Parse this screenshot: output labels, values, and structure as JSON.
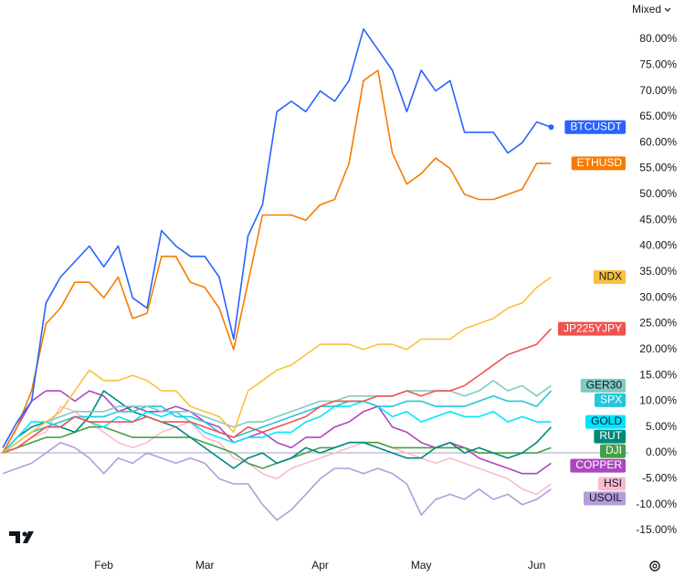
{
  "chart_data": {
    "type": "line",
    "scale_button": "Mixed",
    "categories": [
      null,
      null,
      null,
      null,
      null,
      null,
      null,
      "Feb",
      null,
      null,
      null,
      null,
      null,
      null,
      "Mar",
      null,
      null,
      null,
      null,
      null,
      null,
      null,
      "Apr",
      null,
      null,
      null,
      null,
      null,
      null,
      "May",
      null,
      null,
      null,
      null,
      null,
      null,
      null,
      "Jun",
      null
    ],
    "ylim": [
      -18,
      86
    ],
    "yticks": [
      {
        "value": -15,
        "label": "-15.00%"
      },
      {
        "value": -10,
        "label": "-10.00%"
      },
      {
        "value": -5,
        "label": "-5.00%"
      },
      {
        "value": 0,
        "label": "0.00%"
      },
      {
        "value": 5,
        "label": "5.00%"
      },
      {
        "value": 10,
        "label": "10.00%"
      },
      {
        "value": 15,
        "label": "15.00%"
      },
      {
        "value": 20,
        "label": "20.00%"
      },
      {
        "value": 25,
        "label": "25.00%"
      },
      {
        "value": 30,
        "label": "30.00%"
      },
      {
        "value": 35,
        "label": "35.00%"
      },
      {
        "value": 40,
        "label": "40.00%"
      },
      {
        "value": 45,
        "label": "45.00%"
      },
      {
        "value": 50,
        "label": "50.00%"
      },
      {
        "value": 55,
        "label": "55.00%"
      },
      {
        "value": 60,
        "label": "60.00%"
      },
      {
        "value": 65,
        "label": "65.00%"
      },
      {
        "value": 70,
        "label": "70.00%"
      },
      {
        "value": 75,
        "label": "75.00%"
      },
      {
        "value": 80,
        "label": "80.00%"
      }
    ],
    "grid": false,
    "series": [
      {
        "name": "BTCUSDT",
        "color": "#2962ff",
        "values": [
          1,
          6,
          10,
          29,
          34,
          37,
          40,
          36,
          40,
          30,
          28,
          43,
          40,
          38,
          38,
          34,
          22,
          42,
          48,
          66,
          68,
          66,
          70,
          68,
          72,
          82,
          78,
          74,
          66,
          74,
          70,
          72,
          62,
          62,
          62,
          58,
          60,
          64,
          63
        ]
      },
      {
        "name": "ETHUSD",
        "color": "#f57c00",
        "values": [
          0,
          5,
          12,
          25,
          28,
          33,
          33,
          30,
          34,
          26,
          27,
          38,
          38,
          33,
          32,
          28,
          20,
          33,
          46,
          46,
          46,
          45,
          48,
          49,
          56,
          72,
          74,
          58,
          52,
          54,
          57,
          55,
          50,
          49,
          49,
          50,
          51,
          56,
          56
        ]
      },
      {
        "name": "NDX",
        "color": "#f9c23c",
        "values": [
          0,
          2,
          4,
          6,
          8,
          12,
          16,
          14,
          14,
          15,
          14,
          12,
          12,
          9,
          8,
          7,
          4,
          12,
          14,
          16,
          17,
          19,
          21,
          21,
          21,
          20,
          21,
          21,
          20,
          22,
          22,
          22,
          24,
          25,
          26,
          28,
          29,
          32,
          34
        ]
      },
      {
        "name": "JP225YJPY",
        "color": "#ef5350",
        "values": [
          0,
          1,
          3,
          5,
          5,
          7,
          6,
          6,
          6,
          6,
          7,
          6,
          6,
          6,
          5,
          4,
          3,
          5,
          4,
          5,
          6,
          7,
          9,
          10,
          10,
          10,
          11,
          11,
          12,
          11,
          12,
          12,
          13,
          15,
          17,
          19,
          20,
          21,
          24
        ]
      },
      {
        "name": "GER30",
        "color": "#80cbc4",
        "values": [
          0,
          2,
          4,
          6,
          7,
          8,
          8,
          8,
          9,
          9,
          9,
          8,
          8,
          8,
          7,
          6,
          5,
          6,
          6,
          7,
          8,
          9,
          10,
          10,
          11,
          11,
          11,
          11,
          12,
          12,
          12,
          12,
          11,
          12,
          14,
          12,
          13,
          11,
          13
        ]
      },
      {
        "name": "SPX",
        "color": "#26c6da",
        "values": [
          0,
          2,
          4,
          5,
          6,
          7,
          7,
          7,
          8,
          8,
          9,
          9,
          7,
          7,
          6,
          4,
          3,
          4,
          5,
          6,
          7,
          8,
          9,
          9,
          10,
          10,
          9,
          9,
          10,
          10,
          9,
          9,
          9,
          10,
          11,
          10,
          10,
          9,
          12
        ]
      },
      {
        "name": "GOLD",
        "color": "#00e5ff",
        "values": [
          0,
          3,
          6,
          6,
          5,
          7,
          6,
          5,
          7,
          6,
          8,
          7,
          8,
          6,
          4,
          3,
          2,
          3,
          3,
          4,
          4,
          6,
          7,
          9,
          9,
          10,
          9,
          7,
          8,
          6,
          7,
          8,
          7,
          7,
          8,
          6,
          7,
          6,
          6
        ]
      },
      {
        "name": "RUT",
        "color": "#00897b",
        "values": [
          0,
          3,
          5,
          6,
          5,
          4,
          7,
          12,
          10,
          8,
          7,
          6,
          5,
          3,
          1,
          -1,
          -3,
          -1,
          0,
          -2,
          -1,
          1,
          0,
          1,
          2,
          2,
          1,
          0,
          -1,
          -1,
          1,
          2,
          0,
          1,
          0,
          -1,
          0,
          2,
          5
        ]
      },
      {
        "name": "DJI",
        "color": "#43a047",
        "values": [
          0,
          1,
          2,
          3,
          3,
          4,
          5,
          5,
          4,
          3,
          3,
          3,
          3,
          3,
          2,
          1,
          0,
          -2,
          -3,
          -2,
          -1,
          0,
          1,
          1,
          2,
          2,
          2,
          1,
          1,
          1,
          1,
          1,
          1,
          0,
          0,
          0,
          0,
          0,
          1
        ]
      },
      {
        "name": "COPPER",
        "color": "#ab47bc",
        "values": [
          0,
          5,
          10,
          12,
          12,
          10,
          12,
          11,
          8,
          9,
          8,
          8,
          9,
          8,
          6,
          5,
          2,
          3,
          4,
          2,
          1,
          3,
          3,
          5,
          6,
          8,
          9,
          5,
          4,
          2,
          1,
          2,
          1,
          -1,
          -2,
          -3,
          -4,
          -4,
          -2
        ]
      },
      {
        "name": "HSI",
        "color": "#f8bbd0",
        "values": [
          0,
          1,
          3,
          4,
          9,
          8,
          6,
          4,
          2,
          1,
          2,
          4,
          5,
          6,
          3,
          2,
          -1,
          -2,
          -4,
          -5,
          -3,
          -2,
          -1,
          0,
          1,
          2,
          2,
          1,
          0,
          -1,
          -2,
          -1,
          -2,
          -3,
          -4,
          -5,
          -7,
          -8,
          -6
        ]
      },
      {
        "name": "USOIL",
        "color": "#b39ddb",
        "values": [
          -4,
          -3,
          -2,
          0,
          2,
          1,
          -1,
          -4,
          -1,
          -2,
          0,
          -1,
          -2,
          -1,
          -2,
          -5,
          -6,
          -6,
          -10,
          -13,
          -11,
          -8,
          -5,
          -3,
          -3,
          -4,
          -3,
          -4,
          -6,
          -12,
          -9,
          -8,
          -9,
          -7,
          -9,
          -8,
          -10,
          -9,
          -7
        ]
      }
    ]
  }
}
